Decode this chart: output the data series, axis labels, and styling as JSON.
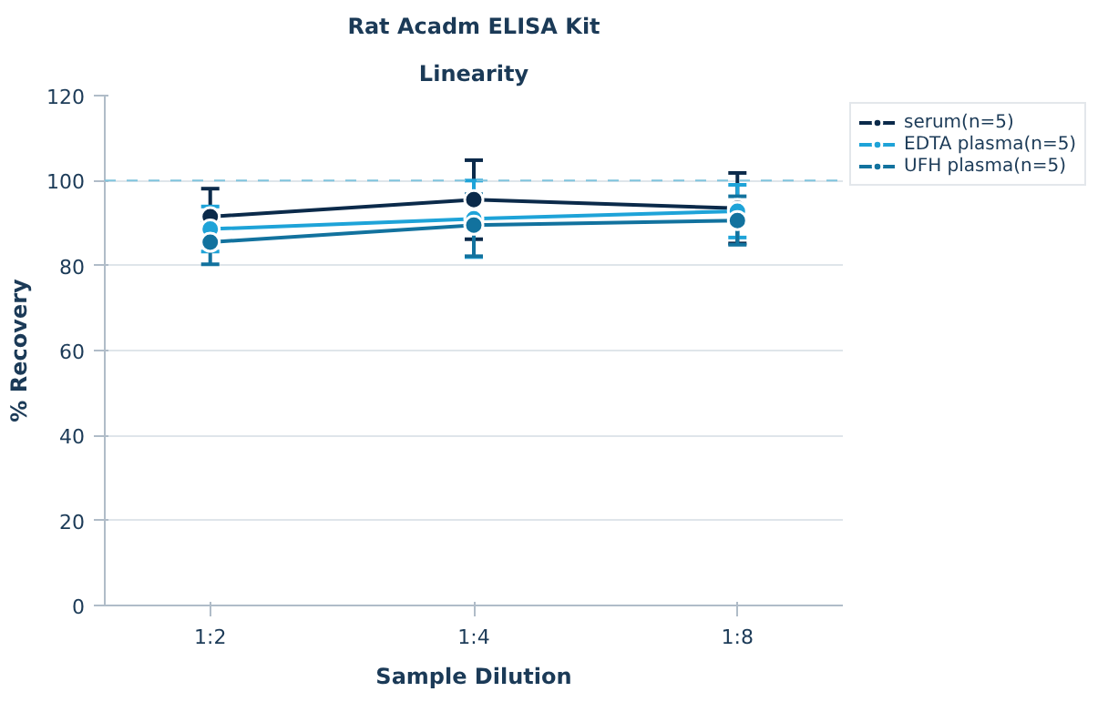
{
  "chart_data": {
    "type": "line",
    "title": "Rat Acadm ELISA Kit",
    "subtitle": "Linearity",
    "xlabel": "Sample Dilution",
    "ylabel": "% Recovery",
    "categories": [
      "1:2",
      "1:4",
      "1:8"
    ],
    "series": [
      {
        "name": "serum(n=5)",
        "color": "#0b2a4a",
        "values": [
          91.5,
          95.5,
          93.5
        ],
        "errors": [
          6.6,
          9.3,
          8.3
        ]
      },
      {
        "name": "EDTA plasma(n=5)",
        "color": "#1ea3d8",
        "values": [
          88.6,
          91.0,
          92.8
        ],
        "errors": [
          5.3,
          9.0,
          6.2
        ]
      },
      {
        "name": "UFH plasma(n=5)",
        "color": "#12729e",
        "values": [
          85.5,
          89.5,
          90.6
        ],
        "errors": [
          5.2,
          7.3,
          5.7
        ]
      }
    ],
    "ylim": [
      0,
      120
    ],
    "yticks": [
      0,
      20,
      40,
      60,
      80,
      100,
      120
    ],
    "ref_lines": [
      {
        "axis": "y",
        "value": 100,
        "label": null,
        "color": "#7fc4dd",
        "line_style": "dashed"
      }
    ],
    "grid": "y",
    "legend": "top right",
    "marker": "circle",
    "line_style": "solid"
  }
}
